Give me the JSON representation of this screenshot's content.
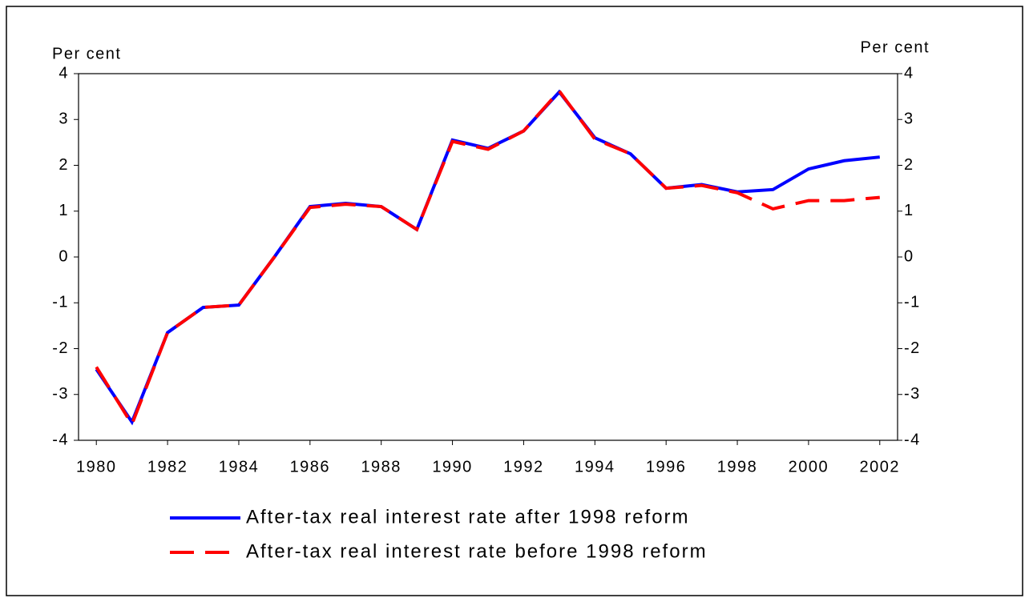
{
  "chart_data": {
    "type": "line",
    "y_label": "Per cent",
    "y2_label": "Per cent",
    "x": [
      1980,
      1981,
      1982,
      1983,
      1984,
      1985,
      1986,
      1987,
      1988,
      1989,
      1990,
      1991,
      1992,
      1993,
      1994,
      1995,
      1996,
      1997,
      1998,
      1999,
      2000,
      2001,
      2002
    ],
    "xlim": [
      1979.5,
      2002.5
    ],
    "xticks": [
      1980,
      1982,
      1984,
      1986,
      1988,
      1990,
      1992,
      1994,
      1996,
      1998,
      2000,
      2002
    ],
    "ylim": [
      -4,
      4
    ],
    "yticks": [
      -4,
      -3,
      -2,
      -1,
      0,
      1,
      2,
      3,
      4
    ],
    "y2lim": [
      -4,
      4
    ],
    "y2ticks": [
      -4,
      -3,
      -2,
      -1,
      0,
      1,
      2,
      3,
      4
    ],
    "series": [
      {
        "name": "After-tax real interest rate after 1998 reform",
        "color": "#0000ff",
        "dash": "solid",
        "values": [
          -2.45,
          -3.6,
          -1.65,
          -1.1,
          -1.05,
          0.0,
          1.1,
          1.17,
          1.1,
          0.6,
          2.55,
          2.37,
          2.75,
          3.6,
          2.6,
          2.25,
          1.5,
          1.58,
          1.42,
          1.47,
          1.92,
          2.1,
          2.18
        ]
      },
      {
        "name": "After-tax real interest rate before 1998 reform",
        "color": "#ff0000",
        "dash": "dashed",
        "values": [
          -2.4,
          -3.65,
          -1.65,
          -1.1,
          -1.05,
          0.0,
          1.08,
          1.15,
          1.1,
          0.6,
          2.52,
          2.35,
          2.75,
          3.62,
          2.57,
          2.25,
          1.5,
          1.56,
          1.4,
          1.05,
          1.23,
          1.23,
          1.3
        ]
      }
    ]
  }
}
